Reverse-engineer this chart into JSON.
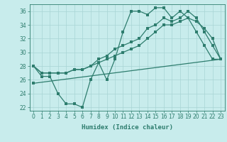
{
  "xlabel": "Humidex (Indice chaleur)",
  "bg_color": "#c8ecec",
  "line_color": "#2e7d6e",
  "grid_color": "#a8d4d4",
  "ylim": [
    21.5,
    37
  ],
  "xlim": [
    -0.5,
    23.5
  ],
  "yticks": [
    22,
    24,
    26,
    28,
    30,
    32,
    34,
    36
  ],
  "xticks": [
    0,
    1,
    2,
    3,
    4,
    5,
    6,
    7,
    8,
    9,
    10,
    11,
    12,
    13,
    14,
    15,
    16,
    17,
    18,
    19,
    20,
    21,
    22,
    23
  ],
  "series1_x": [
    0,
    1,
    2,
    3,
    4,
    5,
    6,
    7,
    8,
    9,
    10,
    11,
    12,
    13,
    14,
    15,
    16,
    17,
    18,
    19,
    20,
    21,
    22,
    23
  ],
  "series1_y": [
    28,
    26.5,
    26.5,
    24,
    22.5,
    22.5,
    22,
    26,
    28.5,
    26,
    29,
    33,
    36,
    36,
    35.5,
    36.5,
    36.5,
    35,
    36,
    35,
    33,
    31,
    29,
    29
  ],
  "series2_x": [
    0,
    1,
    2,
    3,
    4,
    5,
    6,
    7,
    8,
    9,
    10,
    11,
    12,
    13,
    14,
    15,
    16,
    17,
    18,
    19,
    20,
    21,
    22,
    23
  ],
  "series2_y": [
    28,
    27,
    27,
    27,
    27,
    27.5,
    27.5,
    28,
    29,
    29.5,
    30.5,
    31,
    31.5,
    32,
    33.5,
    34,
    35,
    34.5,
    35,
    36,
    35,
    33,
    31,
    29
  ],
  "series3_x": [
    0,
    1,
    2,
    3,
    4,
    5,
    6,
    7,
    8,
    9,
    10,
    11,
    12,
    13,
    14,
    15,
    16,
    17,
    18,
    19,
    20,
    21,
    22,
    23
  ],
  "series3_y": [
    28,
    27,
    27,
    27,
    27,
    27.5,
    27.5,
    28,
    28.5,
    29,
    29.5,
    30,
    30.5,
    31,
    32,
    33,
    34,
    34,
    34.5,
    35,
    34.5,
    33.5,
    32,
    29
  ],
  "series4_x": [
    0,
    23
  ],
  "series4_y": [
    25.5,
    29
  ]
}
